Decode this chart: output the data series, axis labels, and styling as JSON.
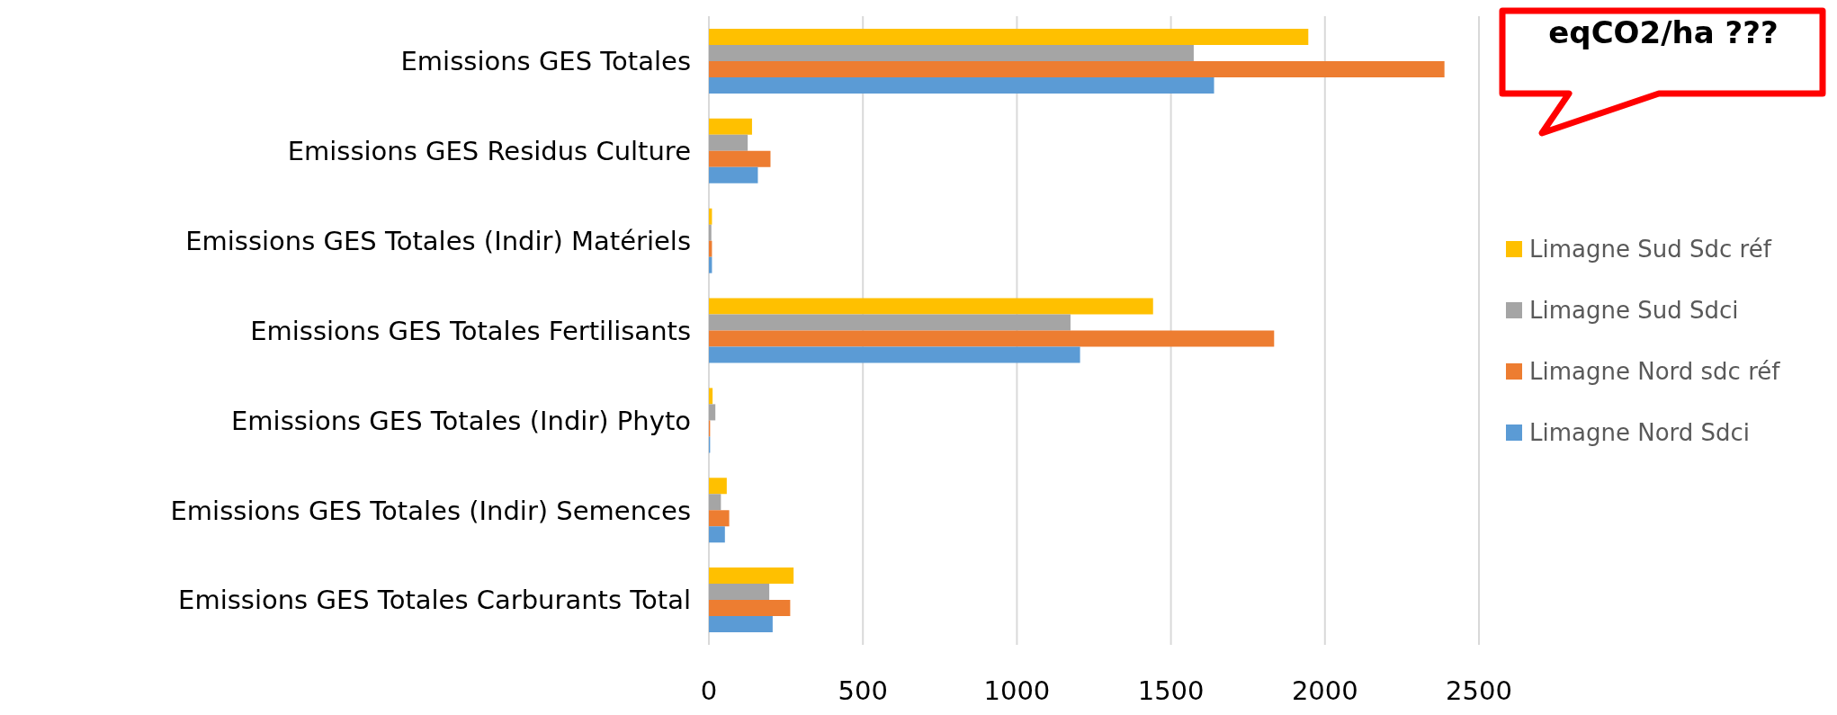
{
  "chart_data": {
    "type": "bar",
    "orientation": "horizontal",
    "categories": [
      "Emissions GES Totales",
      "Emissions GES Residus Culture",
      "Emissions GES Totales (Indir) Matériels",
      "Emissions GES Totales Fertilisants",
      "Emissions GES Totales (Indir) Phyto",
      "Emissions GES Totales (Indir) Semences",
      "Emissions GES Totales Carburants Total"
    ],
    "series": [
      {
        "name": "Limagne Sud Sdc réf",
        "color": "#ffc000",
        "values": [
          1946,
          140,
          10,
          1442,
          12,
          58,
          275
        ]
      },
      {
        "name": "Limagne Sud Sdci",
        "color": "#a5a5a5",
        "values": [
          1574,
          126,
          8,
          1174,
          21,
          39,
          196
        ]
      },
      {
        "name": "Limagne Nord sdc réf",
        "color": "#ed7d31",
        "values": [
          2388,
          200,
          10,
          1835,
          4,
          66,
          264
        ]
      },
      {
        "name": "Limagne Nord Sdci",
        "color": "#5b9bd5",
        "values": [
          1640,
          159,
          10,
          1205,
          4,
          52,
          207
        ]
      }
    ],
    "xlim": [
      0,
      2500
    ],
    "xticks": [
      0,
      500,
      1000,
      1500,
      2000,
      2500
    ],
    "grid": "x",
    "legend": "right",
    "annotations": [
      "eqCO2/ha ???"
    ]
  }
}
